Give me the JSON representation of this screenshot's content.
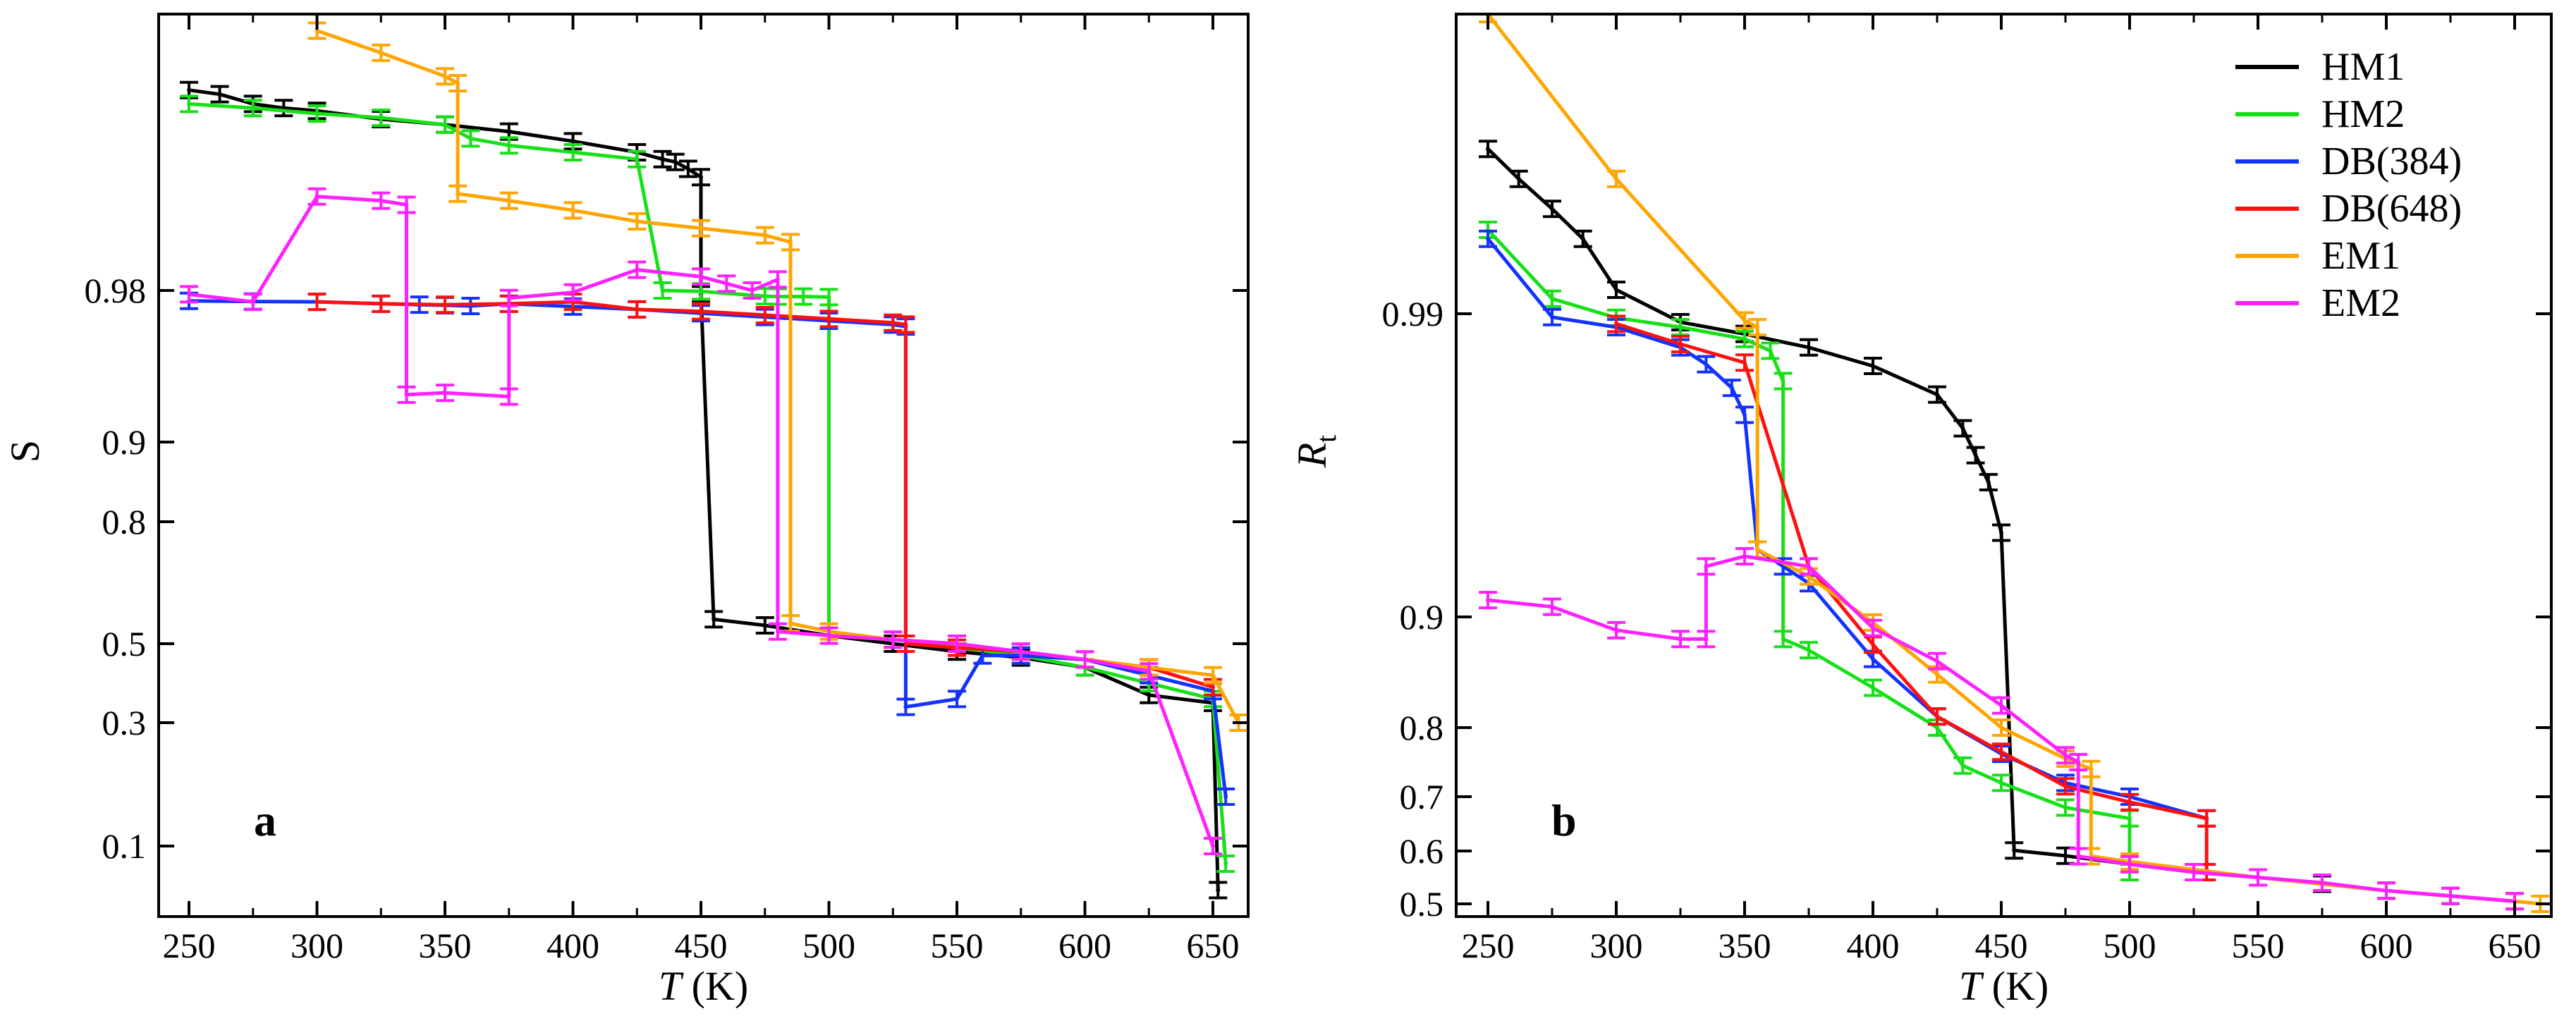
{
  "colors": {
    "HM1": "#000000",
    "HM2": "#18e018",
    "DB(384)": "#1432ff",
    "DB(648)": "#ff1010",
    "EM1": "#ffa500",
    "EM2": "#ff20ff"
  },
  "chart_data": [
    {
      "type": "line",
      "panel_label": "a",
      "xlabel": "T",
      "xlabel_unit": "(K)",
      "ylabel": "S",
      "xlim": [
        240,
        665
      ],
      "ylim": [
        0.02,
        1.0
      ],
      "y_scale": "nonlinear (order-parameter scale; ticks unevenly spaced)",
      "x_ticks": [
        "250",
        "300",
        "350",
        "400",
        "450",
        "500",
        "550",
        "600",
        "650"
      ],
      "y_ticks": [
        "0.1",
        "0.3",
        "0.5",
        "0.8",
        "0.9",
        "0.98"
      ],
      "error_bars": true,
      "series": [
        {
          "name": "HM1",
          "points": [
            [
              250,
              0.9945
            ],
            [
              262,
              0.9942
            ],
            [
              275,
              0.9935
            ],
            [
              287,
              0.9932
            ],
            [
              300,
              0.993
            ],
            [
              325,
              0.9924
            ],
            [
              350,
              0.992
            ],
            [
              375,
              0.9915
            ],
            [
              400,
              0.9908
            ],
            [
              425,
              0.99
            ],
            [
              435,
              0.9895
            ],
            [
              440,
              0.9893
            ],
            [
              445,
              0.9888
            ],
            [
              450,
              0.9882
            ],
            [
              450,
              0.978
            ],
            [
              455,
              0.56
            ],
            [
              475,
              0.545
            ],
            [
              500,
              0.52
            ],
            [
              525,
              0.5
            ],
            [
              550,
              0.48
            ],
            [
              575,
              0.465
            ],
            [
              600,
              0.44
            ],
            [
              625,
              0.37
            ],
            [
              650,
              0.35
            ],
            [
              652,
              0.05
            ]
          ]
        },
        {
          "name": "HM2",
          "points": [
            [
              250,
              0.9935
            ],
            [
              275,
              0.9932
            ],
            [
              300,
              0.9928
            ],
            [
              325,
              0.9925
            ],
            [
              350,
              0.992
            ],
            [
              360,
              0.991
            ],
            [
              375,
              0.9905
            ],
            [
              400,
              0.99
            ],
            [
              425,
              0.9895
            ],
            [
              435,
              0.98
            ],
            [
              450,
              0.9795
            ],
            [
              475,
              0.977
            ],
            [
              480,
              0.9768
            ],
            [
              490,
              0.9768
            ],
            [
              500,
              0.9765
            ],
            [
              500,
              0.52
            ],
            [
              525,
              0.51
            ],
            [
              550,
              0.49
            ],
            [
              575,
              0.47
            ],
            [
              600,
              0.44
            ],
            [
              625,
              0.4
            ],
            [
              650,
              0.36
            ],
            [
              655,
              0.08
            ]
          ]
        },
        {
          "name": "DB(384)",
          "points": [
            [
              250,
              0.9745
            ],
            [
              275,
              0.9742
            ],
            [
              300,
              0.974
            ],
            [
              325,
              0.973
            ],
            [
              340,
              0.9725
            ],
            [
              350,
              0.9722
            ],
            [
              360,
              0.9718
            ],
            [
              375,
              0.973
            ],
            [
              400,
              0.9715
            ],
            [
              425,
              0.97
            ],
            [
              450,
              0.968
            ],
            [
              475,
              0.966
            ],
            [
              500,
              0.964
            ],
            [
              525,
              0.962
            ],
            [
              530,
              0.961
            ],
            [
              530,
              0.34
            ],
            [
              550,
              0.36
            ],
            [
              560,
              0.47
            ],
            [
              575,
              0.47
            ],
            [
              600,
              0.46
            ],
            [
              625,
              0.42
            ],
            [
              650,
              0.38
            ],
            [
              655,
              0.18
            ]
          ]
        },
        {
          "name": "DB(648)",
          "points": [
            [
              300,
              0.974
            ],
            [
              325,
              0.973
            ],
            [
              350,
              0.9725
            ],
            [
              375,
              0.973
            ],
            [
              400,
              0.974
            ],
            [
              425,
              0.97
            ],
            [
              450,
              0.969
            ],
            [
              475,
              0.967
            ],
            [
              500,
              0.965
            ],
            [
              525,
              0.963
            ],
            [
              530,
              0.962
            ],
            [
              530,
              0.5
            ],
            [
              550,
              0.49
            ],
            [
              575,
              0.48
            ],
            [
              600,
              0.46
            ],
            [
              625,
              0.44
            ],
            [
              650,
              0.39
            ]
          ]
        },
        {
          "name": "EM1",
          "points": [
            [
              300,
              0.9988
            ],
            [
              325,
              0.9972
            ],
            [
              350,
              0.9955
            ],
            [
              355,
              0.995
            ],
            [
              355,
              0.987
            ],
            [
              375,
              0.9865
            ],
            [
              400,
              0.9858
            ],
            [
              425,
              0.985
            ],
            [
              450,
              0.9845
            ],
            [
              475,
              0.984
            ],
            [
              485,
              0.9835
            ],
            [
              485,
              0.55
            ],
            [
              500,
              0.53
            ],
            [
              525,
              0.51
            ],
            [
              550,
              0.5
            ],
            [
              575,
              0.48
            ],
            [
              600,
              0.46
            ],
            [
              625,
              0.44
            ],
            [
              650,
              0.42
            ],
            [
              660,
              0.3
            ]
          ]
        },
        {
          "name": "EM2",
          "points": [
            [
              250,
              0.978
            ],
            [
              275,
              0.974
            ],
            [
              300,
              0.9868
            ],
            [
              325,
              0.9865
            ],
            [
              335,
              0.9862
            ],
            [
              335,
              0.925
            ],
            [
              350,
              0.926
            ],
            [
              375,
              0.924
            ],
            [
              375,
              0.976
            ],
            [
              400,
              0.979
            ],
            [
              425,
              0.9815
            ],
            [
              450,
              0.981
            ],
            [
              460,
              0.9805
            ],
            [
              470,
              0.98
            ],
            [
              480,
              0.9808
            ],
            [
              480,
              0.53
            ],
            [
              500,
              0.52
            ],
            [
              525,
              0.51
            ],
            [
              550,
              0.5
            ],
            [
              575,
              0.48
            ],
            [
              600,
              0.46
            ],
            [
              625,
              0.43
            ],
            [
              650,
              0.1
            ]
          ]
        }
      ]
    },
    {
      "type": "line",
      "panel_label": "b",
      "xlabel": "T",
      "xlabel_unit": "(K)",
      "ylabel": "R",
      "ylabel_subscript": "t",
      "xlim": [
        240,
        665
      ],
      "ylim": [
        0.49,
        1.0
      ],
      "y_scale": "nonlinear (ticks unevenly spaced)",
      "x_ticks": [
        "250",
        "300",
        "350",
        "400",
        "450",
        "500",
        "550",
        "600",
        "650"
      ],
      "y_ticks": [
        "0.5",
        "0.6",
        "0.7",
        "0.8",
        "0.9",
        "0.99"
      ],
      "legend_position": "top-right",
      "error_bars": true,
      "series": [
        {
          "name": "HM1",
          "points": [
            [
              250,
              0.9955
            ],
            [
              262,
              0.9945
            ],
            [
              275,
              0.9935
            ],
            [
              287,
              0.9925
            ],
            [
              300,
              0.9908
            ],
            [
              325,
              0.9875
            ],
            [
              350,
              0.984
            ],
            [
              375,
              0.98
            ],
            [
              400,
              0.9745
            ],
            [
              425,
              0.966
            ],
            [
              435,
              0.956
            ],
            [
              440,
              0.948
            ],
            [
              445,
              0.94
            ],
            [
              450,
              0.925
            ],
            [
              455,
              0.601
            ],
            [
              475,
              0.591
            ],
            [
              500,
              0.575
            ],
            [
              525,
              0.56
            ],
            [
              550,
              0.55
            ],
            [
              575,
              0.538
            ],
            [
              600,
              0.525
            ],
            [
              625,
              0.515
            ],
            [
              650,
              0.505
            ]
          ]
        },
        {
          "name": "HM2",
          "points": [
            [
              250,
              0.9928
            ],
            [
              275,
              0.9905
            ],
            [
              300,
              0.9888
            ],
            [
              325,
              0.986
            ],
            [
              350,
              0.9825
            ],
            [
              360,
              0.979
            ],
            [
              365,
              0.97
            ],
            [
              365,
              0.88
            ],
            [
              375,
              0.87
            ],
            [
              400,
              0.836
            ],
            [
              425,
              0.8
            ],
            [
              435,
              0.745
            ],
            [
              450,
              0.72
            ],
            [
              475,
              0.68
            ],
            [
              500,
              0.66
            ],
            [
              500,
              0.56
            ]
          ]
        },
        {
          "name": "DB(384)",
          "points": [
            [
              250,
              0.9925
            ],
            [
              275,
              0.989
            ],
            [
              300,
              0.986
            ],
            [
              325,
              0.98
            ],
            [
              335,
              0.975
            ],
            [
              345,
              0.968
            ],
            [
              350,
              0.96
            ],
            [
              355,
              0.92
            ],
            [
              365,
              0.915
            ],
            [
              375,
              0.91
            ],
            [
              400,
              0.862
            ],
            [
              425,
              0.81
            ],
            [
              450,
              0.762
            ],
            [
              475,
              0.72
            ],
            [
              500,
              0.7
            ],
            [
              530,
              0.66
            ]
          ]
        },
        {
          "name": "DB(648)",
          "points": [
            [
              300,
              0.987
            ],
            [
              325,
              0.981
            ],
            [
              350,
              0.9755
            ],
            [
              375,
              0.915
            ],
            [
              400,
              0.875
            ],
            [
              425,
              0.81
            ],
            [
              450,
              0.765
            ],
            [
              475,
              0.715
            ],
            [
              500,
              0.69
            ],
            [
              530,
              0.66
            ],
            [
              530,
              0.56
            ]
          ]
        },
        {
          "name": "EM1",
          "points": [
            [
              250,
              1.0
            ],
            [
              300,
              0.9945
            ],
            [
              350,
              0.988
            ],
            [
              355,
              0.986
            ],
            [
              355,
              0.92
            ],
            [
              375,
              0.912
            ],
            [
              400,
              0.895
            ],
            [
              425,
              0.848
            ],
            [
              450,
              0.8
            ],
            [
              475,
              0.755
            ],
            [
              485,
              0.74
            ],
            [
              485,
              0.59
            ],
            [
              500,
              0.58
            ],
            [
              550,
              0.55
            ],
            [
              600,
              0.525
            ],
            [
              650,
              0.505
            ],
            [
              660,
              0.5
            ]
          ]
        },
        {
          "name": "EM2",
          "points": [
            [
              250,
              0.905
            ],
            [
              275,
              0.903
            ],
            [
              300,
              0.888
            ],
            [
              325,
              0.88
            ],
            [
              335,
              0.88
            ],
            [
              335,
              0.915
            ],
            [
              350,
              0.918
            ],
            [
              375,
              0.915
            ],
            [
              400,
              0.89
            ],
            [
              425,
              0.86
            ],
            [
              450,
              0.82
            ],
            [
              475,
              0.76
            ],
            [
              480,
              0.75
            ],
            [
              480,
              0.59
            ],
            [
              500,
              0.575
            ],
            [
              525,
              0.56
            ],
            [
              550,
              0.55
            ],
            [
              575,
              0.54
            ],
            [
              600,
              0.525
            ],
            [
              625,
              0.515
            ],
            [
              650,
              0.505
            ]
          ]
        }
      ]
    }
  ]
}
